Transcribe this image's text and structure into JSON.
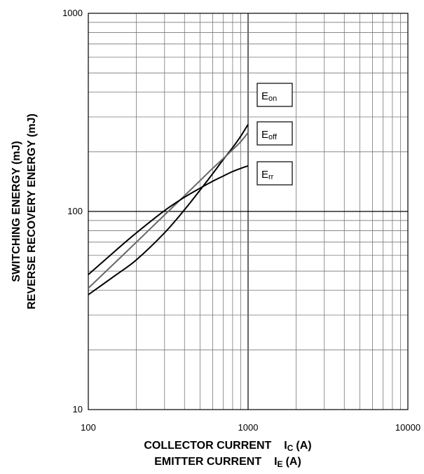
{
  "chart_data": {
    "type": "line",
    "x_scale": "log",
    "y_scale": "log",
    "xlim": [
      100,
      10000
    ],
    "ylim": [
      10,
      1000
    ],
    "grid": true,
    "x_ticks": [
      {
        "value": 100,
        "label": "100"
      },
      {
        "value": 1000,
        "label": "1000"
      },
      {
        "value": 10000,
        "label": "10000"
      }
    ],
    "y_ticks": [
      {
        "value": 10,
        "label": "10"
      },
      {
        "value": 100,
        "label": "100"
      },
      {
        "value": 1000,
        "label": "1000"
      }
    ],
    "xlabel": {
      "line1": {
        "main": "COLLECTOR CURRENT",
        "sym": "I",
        "sub": "C",
        "unit": "(A)"
      },
      "line2": {
        "main": "EMITTER CURRENT",
        "sym": "I",
        "sub": "E",
        "unit": "(A)"
      }
    },
    "ylabel": {
      "line1": "SWITCHING ENERGY (mJ)",
      "line2": "REVERSE RECOVERY ENERGY (mJ)"
    },
    "series": [
      {
        "name": "E",
        "sub": "on",
        "color": "#000000",
        "x": [
          100,
          150,
          200,
          300,
          400,
          500,
          600,
          700,
          800,
          900,
          1000
        ],
        "y": [
          38,
          48,
          57,
          78,
          102,
          128,
          155,
          183,
          210,
          240,
          275
        ]
      },
      {
        "name": "E",
        "sub": "off",
        "color": "#666666",
        "x": [
          100,
          150,
          200,
          300,
          400,
          500,
          600,
          700,
          800,
          900,
          1000
        ],
        "y": [
          41,
          56,
          70,
          96,
          120,
          143,
          165,
          185,
          205,
          225,
          250
        ]
      },
      {
        "name": "E",
        "sub": "rr",
        "color": "#000000",
        "x": [
          100,
          150,
          200,
          300,
          400,
          500,
          600,
          700,
          800,
          900,
          1000
        ],
        "y": [
          48,
          64,
          78,
          101,
          118,
          131,
          142,
          151,
          159,
          165,
          170
        ]
      }
    ]
  }
}
